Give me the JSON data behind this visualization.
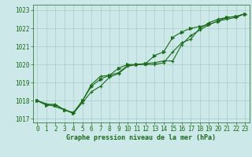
{
  "title": "Graphe pression niveau de la mer (hPa)",
  "background_color": "#cce8e8",
  "grid_color": "#aacccc",
  "line_color": "#1a6b1a",
  "xlim": [
    -0.5,
    23.5
  ],
  "ylim": [
    1016.8,
    1023.3
  ],
  "yticks": [
    1017,
    1018,
    1019,
    1020,
    1021,
    1022,
    1023
  ],
  "xticks": [
    0,
    1,
    2,
    3,
    4,
    5,
    6,
    7,
    8,
    9,
    10,
    11,
    12,
    13,
    14,
    15,
    16,
    17,
    18,
    19,
    20,
    21,
    22,
    23
  ],
  "series1_x": [
    0,
    1,
    2,
    3,
    4,
    5,
    6,
    7,
    8,
    9,
    10,
    11,
    12,
    13,
    14,
    15,
    16,
    17,
    18,
    19,
    20,
    21,
    22,
    23
  ],
  "series1_y": [
    1018.0,
    1017.8,
    1017.8,
    1017.5,
    1017.3,
    1017.9,
    1018.5,
    1018.8,
    1019.3,
    1019.5,
    1019.9,
    1020.0,
    1020.0,
    1020.0,
    1020.1,
    1020.7,
    1021.2,
    1021.4,
    1022.0,
    1022.3,
    1022.5,
    1022.6,
    1022.65,
    1022.8
  ],
  "series2_x": [
    0,
    1,
    2,
    3,
    4,
    5,
    6,
    7,
    8,
    9,
    10,
    11,
    12,
    13,
    14,
    15,
    16,
    17,
    18,
    19,
    20,
    21,
    22,
    23
  ],
  "series2_y": [
    1018.0,
    1017.75,
    1017.75,
    1017.5,
    1017.3,
    1018.0,
    1018.8,
    1019.2,
    1019.4,
    1019.8,
    1020.0,
    1020.0,
    1020.05,
    1020.5,
    1020.7,
    1021.5,
    1021.8,
    1022.0,
    1022.1,
    1022.2,
    1022.4,
    1022.6,
    1022.65,
    1022.8
  ],
  "series3_x": [
    0,
    3,
    4,
    5,
    6,
    7,
    8,
    9,
    10,
    11,
    12,
    13,
    14,
    15,
    16,
    17,
    18,
    19,
    20,
    21,
    22,
    23
  ],
  "series3_y": [
    1018.0,
    1017.5,
    1017.35,
    1018.0,
    1018.9,
    1019.35,
    1019.4,
    1019.55,
    1019.95,
    1020.0,
    1020.05,
    1020.1,
    1020.2,
    1020.2,
    1021.1,
    1021.6,
    1021.9,
    1022.2,
    1022.4,
    1022.5,
    1022.6,
    1022.8
  ],
  "title_fontsize": 6,
  "tick_labelsize": 5.5,
  "linewidth": 0.8,
  "markersize_plus": 3.5,
  "markersize_arrow": 3.0
}
